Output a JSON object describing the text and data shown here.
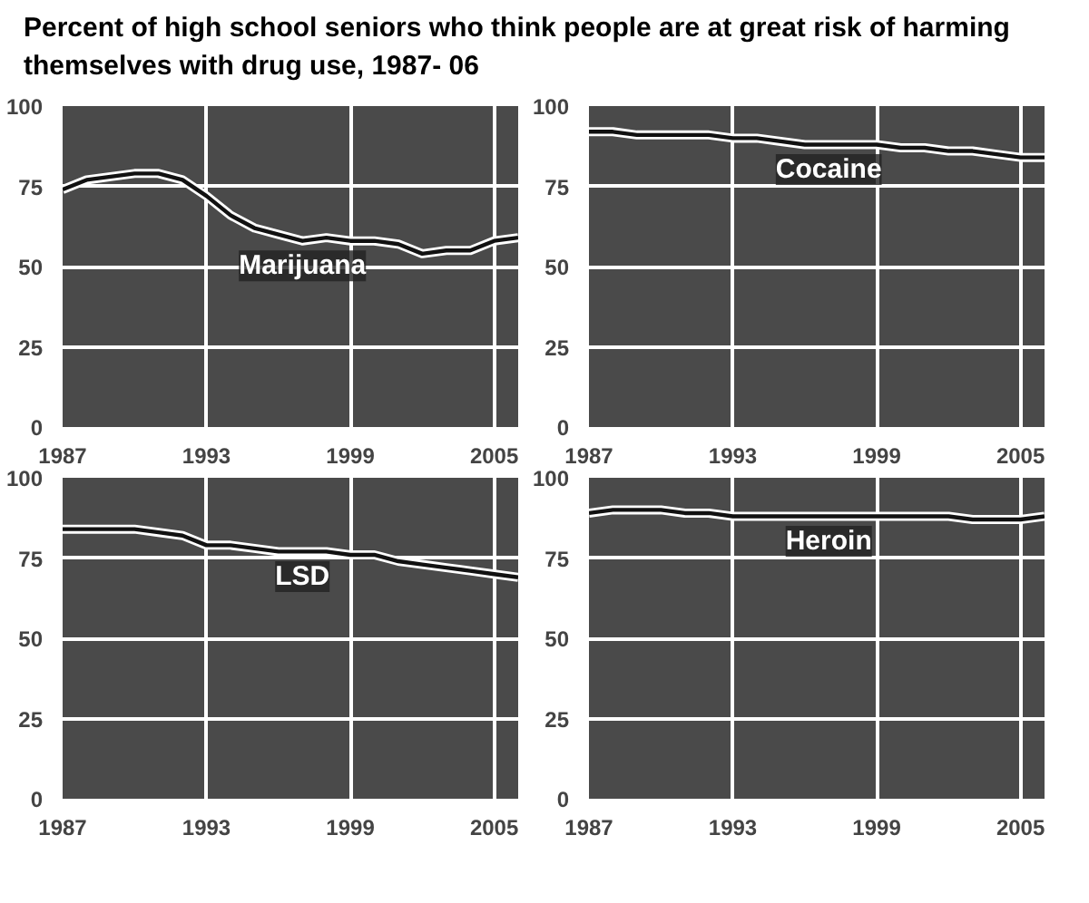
{
  "chart_data": [
    {
      "type": "line",
      "title": "Percent of high school seniors who think people are at great risk of harming themselves with drug use, 1987- 06",
      "x": [
        1987,
        1988,
        1989,
        1990,
        1991,
        1992,
        1993,
        1994,
        1995,
        1996,
        1997,
        1998,
        1999,
        2000,
        2001,
        2002,
        2003,
        2004,
        2005,
        2006
      ],
      "series": [
        {
          "name": "Marijuana",
          "color": "#111111",
          "values": [
            74,
            77,
            78,
            79,
            79,
            77,
            72,
            66,
            62,
            60,
            58,
            59,
            58,
            58,
            57,
            54,
            55,
            55,
            58,
            59
          ]
        }
      ],
      "xlim": [
        1987,
        2006
      ],
      "ylim": [
        0,
        100
      ],
      "xticks": [
        1987,
        1993,
        1999,
        2005
      ],
      "yticks": [
        0,
        25,
        50,
        75,
        100
      ],
      "grid": true
    },
    {
      "type": "line",
      "x": [
        1987,
        1988,
        1989,
        1990,
        1991,
        1992,
        1993,
        1994,
        1995,
        1996,
        1997,
        1998,
        1999,
        2000,
        2001,
        2002,
        2003,
        2004,
        2005,
        2006
      ],
      "series": [
        {
          "name": "Cocaine",
          "color": "#111111",
          "values": [
            92,
            92,
            91,
            91,
            91,
            91,
            90,
            90,
            89,
            88,
            88,
            88,
            88,
            87,
            87,
            86,
            86,
            85,
            84,
            84
          ]
        }
      ],
      "xlim": [
        1987,
        2006
      ],
      "ylim": [
        0,
        100
      ],
      "xticks": [
        1987,
        1993,
        1999,
        2005
      ],
      "yticks": [
        0,
        25,
        50,
        75,
        100
      ],
      "grid": true
    },
    {
      "type": "line",
      "x": [
        1987,
        1988,
        1989,
        1990,
        1991,
        1992,
        1993,
        1994,
        1995,
        1996,
        1997,
        1998,
        1999,
        2000,
        2001,
        2002,
        2003,
        2004,
        2005,
        2006
      ],
      "series": [
        {
          "name": "LSD",
          "color": "#111111",
          "values": [
            84,
            84,
            84,
            84,
            83,
            82,
            79,
            79,
            78,
            77,
            77,
            77,
            76,
            76,
            74,
            73,
            72,
            71,
            70,
            69
          ]
        }
      ],
      "xlim": [
        1987,
        2006
      ],
      "ylim": [
        0,
        100
      ],
      "xticks": [
        1987,
        1993,
        1999,
        2005
      ],
      "yticks": [
        0,
        25,
        50,
        75,
        100
      ],
      "grid": true
    },
    {
      "type": "line",
      "x": [
        1987,
        1988,
        1989,
        1990,
        1991,
        1992,
        1993,
        1994,
        1995,
        1996,
        1997,
        1998,
        1999,
        2000,
        2001,
        2002,
        2003,
        2004,
        2005,
        2006
      ],
      "series": [
        {
          "name": "Heroin",
          "color": "#111111",
          "values": [
            89,
            90,
            90,
            90,
            89,
            89,
            88,
            88,
            88,
            88,
            88,
            88,
            88,
            88,
            88,
            88,
            87,
            87,
            87,
            88
          ]
        }
      ],
      "xlim": [
        1987,
        2006
      ],
      "ylim": [
        0,
        100
      ],
      "xticks": [
        1987,
        1993,
        1999,
        2005
      ],
      "yticks": [
        0,
        25,
        50,
        75,
        100
      ],
      "grid": true
    }
  ]
}
